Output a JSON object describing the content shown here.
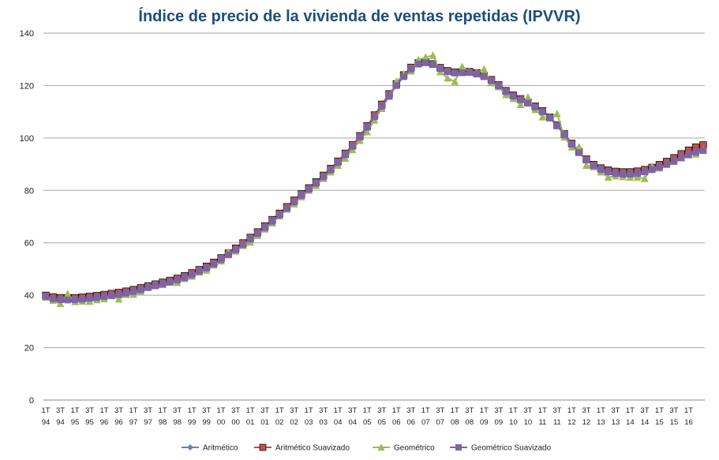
{
  "chart_data": {
    "type": "line",
    "title": "Índice de precio de la vivienda de ventas repetidas (IPVVR)",
    "xlabel": "",
    "ylabel": "",
    "ylim": [
      0,
      140
    ],
    "yticks": [
      "0",
      "20",
      "40",
      "60",
      "80",
      "100",
      "120",
      "140"
    ],
    "grid": "horizontal",
    "legend_position": "bottom",
    "x_tick_labels": [
      [
        "1T",
        "94"
      ],
      [
        "3T",
        "94"
      ],
      [
        "1T",
        "95"
      ],
      [
        "3T",
        "95"
      ],
      [
        "1T",
        "96"
      ],
      [
        "3T",
        "96"
      ],
      [
        "1T",
        "97"
      ],
      [
        "3T",
        "97"
      ],
      [
        "1T",
        "98"
      ],
      [
        "3T",
        "98"
      ],
      [
        "1T",
        "99"
      ],
      [
        "3T",
        "99"
      ],
      [
        "1T",
        "00"
      ],
      [
        "3T",
        "00"
      ],
      [
        "1T",
        "01"
      ],
      [
        "3T",
        "01"
      ],
      [
        "1T",
        "02"
      ],
      [
        "3T",
        "02"
      ],
      [
        "1T",
        "03"
      ],
      [
        "3T",
        "03"
      ],
      [
        "1T",
        "04"
      ],
      [
        "3T",
        "04"
      ],
      [
        "1T",
        "05"
      ],
      [
        "3T",
        "05"
      ],
      [
        "1T",
        "06"
      ],
      [
        "3T",
        "06"
      ],
      [
        "1T",
        "07"
      ],
      [
        "3T",
        "07"
      ],
      [
        "1T",
        "08"
      ],
      [
        "3T",
        "08"
      ],
      [
        "1T",
        "09"
      ],
      [
        "3T",
        "09"
      ],
      [
        "1T",
        "10"
      ],
      [
        "3T",
        "10"
      ],
      [
        "1T",
        "11"
      ],
      [
        "3T",
        "11"
      ],
      [
        "1T",
        "12"
      ],
      [
        "3T",
        "12"
      ],
      [
        "1T",
        "13"
      ],
      [
        "3T",
        "13"
      ],
      [
        "1T",
        "14"
      ],
      [
        "3T",
        "14"
      ],
      [
        "1T",
        "15"
      ],
      [
        "3T",
        "15"
      ],
      [
        "1T",
        "16"
      ]
    ],
    "quarters": [
      "1T94",
      "2T94",
      "3T94",
      "4T94",
      "1T95",
      "2T95",
      "3T95",
      "4T95",
      "1T96",
      "2T96",
      "3T96",
      "4T96",
      "1T97",
      "2T97",
      "3T97",
      "4T97",
      "1T98",
      "2T98",
      "3T98",
      "4T98",
      "1T99",
      "2T99",
      "3T99",
      "4T99",
      "1T00",
      "2T00",
      "3T00",
      "4T00",
      "1T01",
      "2T01",
      "3T01",
      "4T01",
      "1T02",
      "2T02",
      "3T02",
      "4T02",
      "1T03",
      "2T03",
      "3T03",
      "4T03",
      "1T04",
      "2T04",
      "3T04",
      "4T04",
      "1T05",
      "2T05",
      "3T05",
      "4T05",
      "1T06",
      "2T06",
      "3T06",
      "4T06",
      "1T07",
      "2T07",
      "3T07",
      "4T07",
      "1T08",
      "2T08",
      "3T08",
      "4T08",
      "1T09",
      "2T09",
      "3T09",
      "4T09",
      "1T10",
      "2T10",
      "3T10",
      "4T10",
      "1T11",
      "2T11",
      "3T11",
      "4T11",
      "1T12",
      "2T12",
      "3T12",
      "4T12",
      "1T13",
      "2T13",
      "3T13",
      "4T13",
      "1T14",
      "2T14",
      "3T14",
      "4T14",
      "1T15",
      "2T15",
      "3T15",
      "4T15",
      "1T16",
      "2T16",
      "3T16"
    ],
    "series": [
      {
        "name": "Aritmético",
        "color": "#6e7fbf",
        "marker": "diamond",
        "values": [
          39.5,
          38.5,
          38.3,
          38.5,
          38.3,
          38.6,
          38.8,
          39.2,
          39.6,
          40.0,
          40.3,
          40.8,
          41.4,
          42.2,
          43.0,
          43.7,
          44.3,
          45.0,
          45.8,
          46.7,
          47.8,
          49.1,
          50.4,
          51.9,
          53.6,
          55.4,
          57.3,
          59.3,
          61.4,
          63.5,
          65.8,
          68.2,
          70.6,
          73.1,
          75.6,
          78.1,
          80.3,
          82.5,
          85.0,
          87.5,
          90.2,
          93.1,
          96.1,
          99.5,
          103.3,
          107.5,
          111.8,
          116.0,
          120.0,
          123.5,
          126.6,
          128.5,
          129.0,
          128.2,
          126.5,
          125.2,
          124.8,
          125.0,
          125.3,
          124.8,
          123.8,
          122.3,
          120.2,
          117.8,
          116.1,
          114.7,
          113.4,
          112.0,
          110.3,
          108.0,
          105.0,
          101.5,
          97.8,
          94.5,
          91.6,
          89.4,
          88.2,
          87.4,
          86.9,
          86.6,
          86.6,
          86.9,
          87.5,
          88.3,
          89.3,
          90.5,
          91.8,
          93.2,
          94.7,
          95.9,
          96.8
        ]
      },
      {
        "name": "Aritmético Suavizado",
        "color": "#c0504d",
        "marker": "square",
        "values": [
          39.9,
          39.3,
          39.0,
          38.9,
          39.0,
          39.2,
          39.5,
          39.8,
          40.2,
          40.6,
          41.0,
          41.5,
          42.1,
          42.8,
          43.5,
          44.2,
          44.9,
          45.6,
          46.4,
          47.4,
          48.5,
          49.7,
          51.0,
          52.5,
          54.2,
          56.0,
          57.9,
          59.9,
          62.0,
          64.1,
          66.4,
          68.8,
          71.2,
          73.7,
          76.2,
          78.6,
          80.9,
          83.2,
          85.7,
          88.3,
          91.1,
          94.1,
          97.3,
          100.8,
          104.6,
          108.7,
          112.8,
          116.8,
          120.6,
          124.0,
          126.9,
          128.6,
          129.0,
          128.2,
          126.8,
          125.6,
          125.1,
          125.2,
          125.3,
          124.8,
          123.8,
          122.2,
          120.2,
          118.0,
          116.3,
          114.9,
          113.6,
          112.1,
          110.3,
          107.9,
          104.9,
          101.5,
          97.9,
          94.7,
          91.9,
          89.8,
          88.5,
          87.7,
          87.2,
          87.0,
          87.0,
          87.3,
          87.9,
          88.7,
          89.8,
          91.0,
          92.4,
          93.9,
          95.3,
          96.5,
          97.3
        ]
      },
      {
        "name": "Geométrico",
        "color": "#9bbb59",
        "marker": "triangle",
        "values": [
          39.2,
          38.0,
          36.8,
          40.5,
          37.5,
          37.7,
          37.6,
          38.2,
          38.6,
          39.8,
          38.5,
          40.2,
          40.3,
          41.5,
          43.2,
          43.8,
          44.0,
          44.9,
          44.8,
          46.3,
          47.2,
          48.8,
          49.5,
          51.5,
          53.0,
          56.3,
          56.8,
          58.9,
          60.2,
          62.8,
          65.2,
          67.5,
          70.2,
          72.8,
          74.8,
          77.5,
          80.0,
          81.8,
          84.5,
          87.0,
          89.5,
          92.2,
          95.5,
          99.0,
          102.3,
          106.8,
          111.2,
          115.8,
          121.5,
          124.2,
          125.5,
          129.8,
          130.8,
          131.5,
          125.2,
          122.8,
          121.5,
          127.2,
          125.3,
          125.0,
          126.2,
          121.0,
          119.5,
          116.5,
          115.0,
          112.7,
          115.5,
          110.8,
          108.0,
          107.8,
          109.2,
          100.3,
          96.5,
          96.5,
          89.5,
          89.0,
          87.0,
          85.0,
          85.5,
          85.2,
          85.0,
          85.0,
          84.5,
          89.0,
          88.5,
          90.0,
          91.0,
          92.5,
          93.5,
          93.8,
          95.5
        ]
      },
      {
        "name": "Geométrico Suavizado",
        "color": "#8064a2",
        "marker": "square",
        "values": [
          39.5,
          38.7,
          38.3,
          38.2,
          38.3,
          38.5,
          38.8,
          39.1,
          39.5,
          39.9,
          40.3,
          40.8,
          41.4,
          42.1,
          42.9,
          43.6,
          44.3,
          45.0,
          45.8,
          46.7,
          47.8,
          49.1,
          50.4,
          51.9,
          53.6,
          55.4,
          57.3,
          59.3,
          61.4,
          63.5,
          65.8,
          68.2,
          70.6,
          73.1,
          75.6,
          78.1,
          80.4,
          82.7,
          85.2,
          87.8,
          90.6,
          93.6,
          96.8,
          100.3,
          104.1,
          108.1,
          112.1,
          116.0,
          120.0,
          123.4,
          126.3,
          128.2,
          128.7,
          128.0,
          126.5,
          125.3,
          124.8,
          124.9,
          125.0,
          124.4,
          123.4,
          121.9,
          119.9,
          117.7,
          116.0,
          114.6,
          113.3,
          111.8,
          110.0,
          107.6,
          104.6,
          101.2,
          97.6,
          94.4,
          91.6,
          89.4,
          88.0,
          87.1,
          86.5,
          86.2,
          86.2,
          86.5,
          87.1,
          87.9,
          88.8,
          89.9,
          91.1,
          92.4,
          93.6,
          94.6,
          95.2
        ]
      }
    ]
  }
}
